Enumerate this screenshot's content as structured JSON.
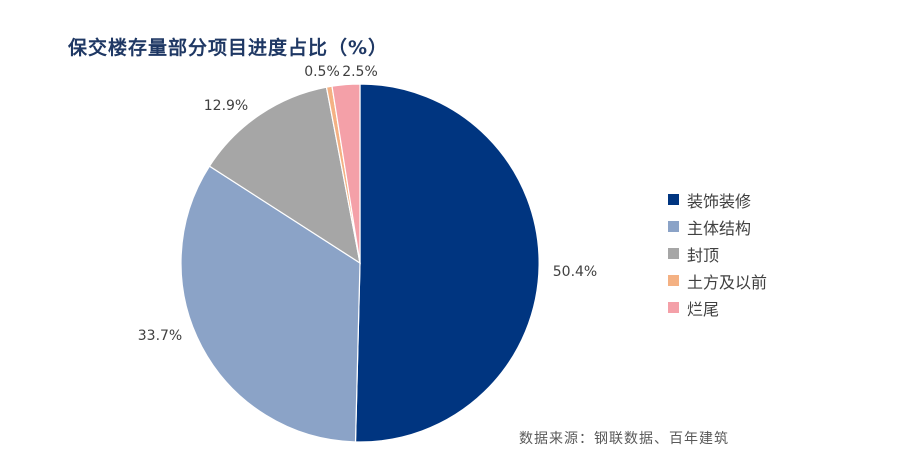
{
  "title": "保交楼存量部分项目进度占比（%）",
  "source": "数据来源：钢联数据、百年建筑",
  "chart_data": {
    "type": "pie",
    "title": "保交楼存量部分项目进度占比（%）",
    "legend_position": "right",
    "slices": [
      {
        "name": "装饰装修",
        "value": 50.4,
        "label": "50.4%",
        "color": "#003580"
      },
      {
        "name": "主体结构",
        "value": 33.7,
        "label": "33.7%",
        "color": "#8ba3c7"
      },
      {
        "name": "封顶",
        "value": 12.9,
        "label": "12.9%",
        "color": "#a6a6a6"
      },
      {
        "name": "土方及以前",
        "value": 0.5,
        "label": "0.5%",
        "color": "#f4b183"
      },
      {
        "name": "烂尾",
        "value": 2.5,
        "label": "2.5%",
        "color": "#f4a0a8"
      }
    ]
  }
}
